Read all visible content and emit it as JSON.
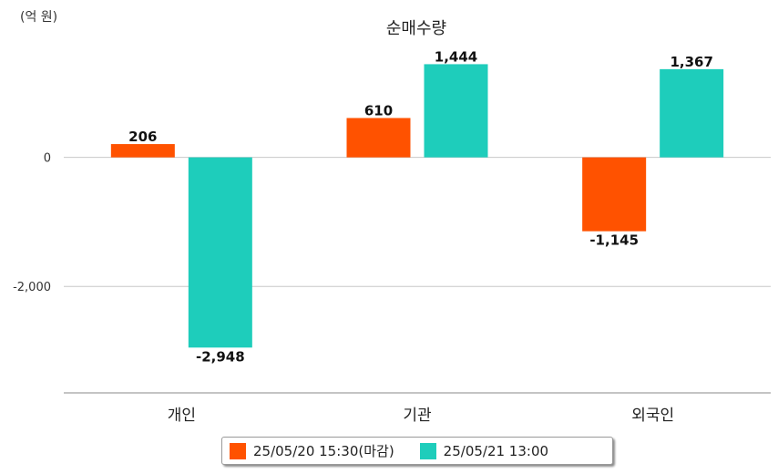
{
  "chart_data": {
    "type": "bar",
    "title": "순매수량",
    "unit_label": "(억 원)",
    "categories": [
      "개인",
      "기관",
      "외국인"
    ],
    "series": [
      {
        "name": "25/05/20 15:30(마감)",
        "color": "#ff5200",
        "values": [
          206,
          610,
          -1145
        ],
        "labels": [
          "206",
          "610",
          "-1,145"
        ]
      },
      {
        "name": "25/05/21 13:00",
        "color": "#1ecdbb",
        "values": [
          -2948,
          1444,
          1367
        ],
        "labels": [
          "-2,948",
          "1,444",
          "1,367"
        ]
      }
    ],
    "yticks": [
      0,
      -2000
    ],
    "ytick_labels": [
      "0",
      "-2,000"
    ],
    "ylim": [
      -3650,
      1450
    ],
    "grid": true,
    "legend_position": "bottom"
  }
}
